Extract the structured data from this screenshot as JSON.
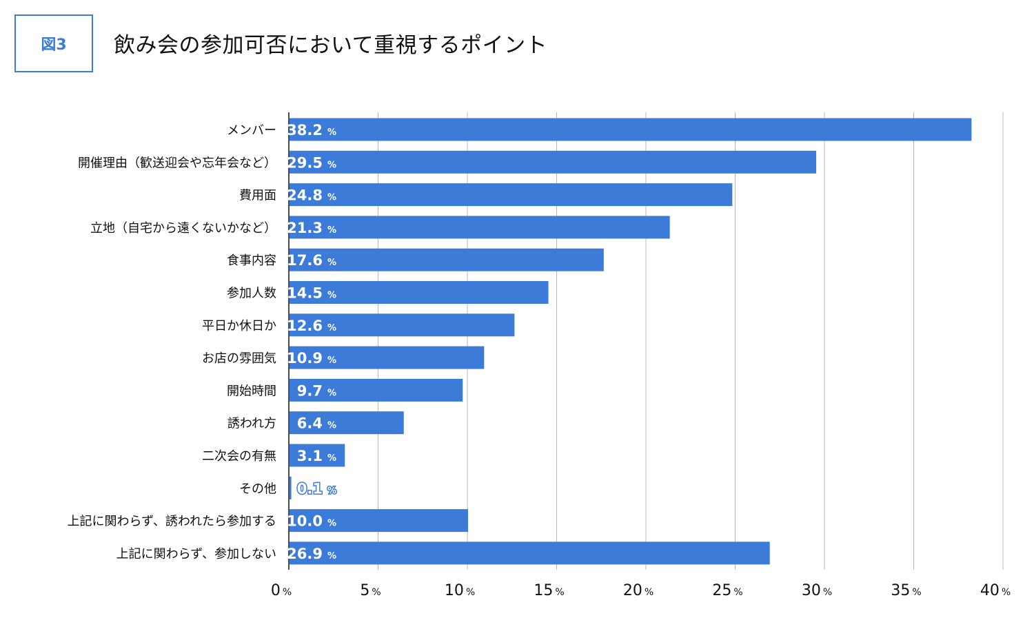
{
  "figure": {
    "badge": "図3",
    "title": "飲み会の参加可否において重視するポイント"
  },
  "colors": {
    "bar": "#3d7bd9",
    "accent": "#3d7bd9",
    "grid": "#b8b8b8"
  },
  "chart_data": {
    "type": "bar",
    "orientation": "horizontal",
    "title": "飲み会の参加可否において重視するポイント",
    "xlabel": "",
    "ylabel": "",
    "xlim": [
      0,
      40
    ],
    "unit": "%",
    "grid": true,
    "legend": "none",
    "ticks": [
      0,
      5,
      10,
      15,
      20,
      25,
      30,
      35,
      40
    ],
    "categories": [
      "メンバー",
      "開催理由（歓送迎会や忘年会など）",
      "費用面",
      "立地（自宅から遠くないかなど）",
      "食事内容",
      "参加人数",
      "平日か休日か",
      "お店の雰囲気",
      "開始時間",
      "誘われ方",
      "二次会の有無",
      "その他",
      "上記に関わらず、誘われたら参加する",
      "上記に関わらず、参加しない"
    ],
    "values": [
      38.2,
      29.5,
      24.8,
      21.3,
      17.6,
      14.5,
      12.6,
      10.9,
      9.7,
      6.4,
      3.1,
      0.1,
      10.0,
      26.9
    ]
  }
}
